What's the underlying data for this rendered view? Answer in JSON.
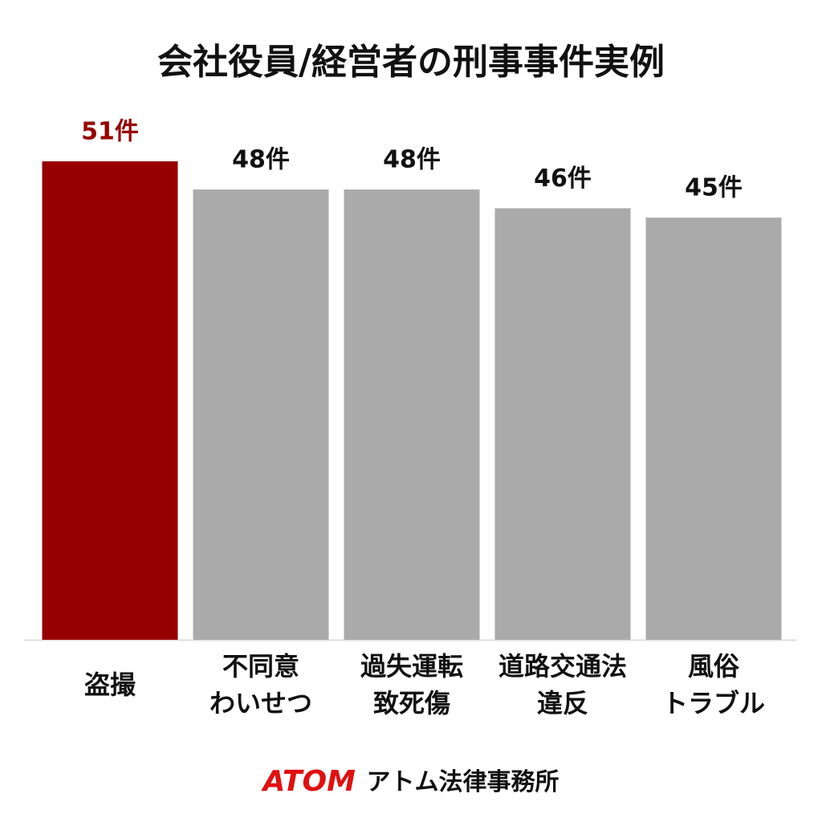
{
  "chart_data": {
    "type": "bar",
    "title": "会社役員/経営者の刑事事件実例",
    "categories": [
      [
        "盗撮"
      ],
      [
        "不同意",
        "わいせつ"
      ],
      [
        "過失運転",
        "致死傷"
      ],
      [
        "道路交通法",
        "違反"
      ],
      [
        "風俗",
        "トラブル"
      ]
    ],
    "values": [
      51,
      48,
      48,
      46,
      45
    ],
    "value_labels": [
      "51件",
      "48件",
      "48件",
      "46件",
      "45件"
    ],
    "colors": [
      "#960000",
      "#aaaaaa",
      "#aaaaaa",
      "#aaaaaa",
      "#aaaaaa"
    ],
    "label_colors": [
      "#960000",
      "#111111",
      "#111111",
      "#111111",
      "#111111"
    ]
  },
  "footer": {
    "brand": "ATOM",
    "name": "アトム法律事務所"
  }
}
